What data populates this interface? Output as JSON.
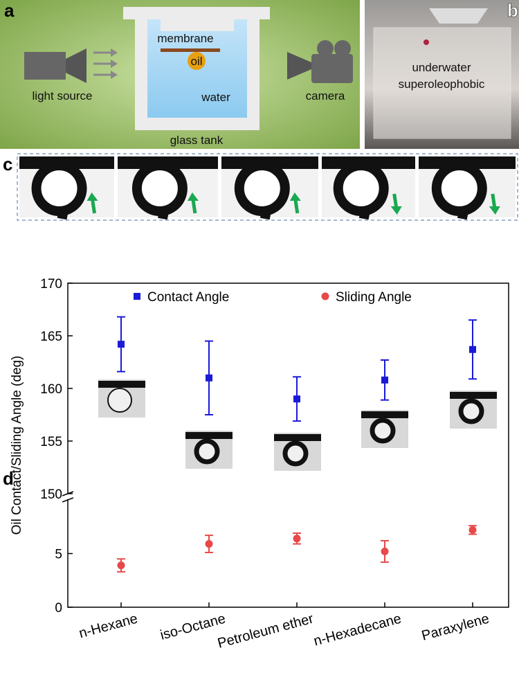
{
  "panel_a": {
    "label": "a",
    "membrane": "membrane",
    "oil": "oil",
    "water": "water",
    "light_source": "light source",
    "camera": "camera",
    "glass_tank": "glass tank"
  },
  "panel_b": {
    "label": "b",
    "caption_lines": [
      "underwater",
      "superoleophobic"
    ]
  },
  "panel_c": {
    "label": "c"
  },
  "panel_d": {
    "label": "d"
  },
  "chart_data": {
    "type": "scatter",
    "ylabel": "Oil Contact/Sliding Angle (deg)",
    "categories": [
      "n-Hexane",
      "iso-Octane",
      "Petroleum ether",
      "n-Hexadecane",
      "Paraxylene"
    ],
    "series": [
      {
        "name": "Contact Angle",
        "color": "#1a1ad8",
        "marker": "square",
        "values": [
          164.2,
          161.0,
          159.0,
          160.8,
          163.7
        ],
        "errors": [
          2.6,
          3.5,
          2.1,
          1.9,
          2.8
        ]
      },
      {
        "name": "Sliding Angle",
        "color": "#e84848",
        "marker": "circle",
        "values": [
          3.9,
          5.9,
          6.4,
          5.2,
          7.2
        ],
        "errors": [
          0.6,
          0.8,
          0.5,
          1.0,
          0.4
        ]
      }
    ],
    "ylim": [
      0,
      170
    ],
    "ybreak": [
      10,
      150
    ],
    "yticks": [
      0,
      5,
      150,
      155,
      160,
      165,
      170
    ],
    "legend": "top",
    "grid": false
  }
}
